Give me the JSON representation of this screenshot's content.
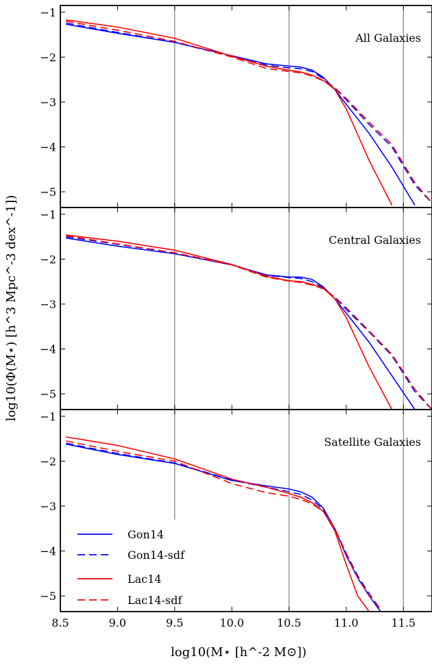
{
  "chart_data": {
    "type": "line",
    "ylabel": "log10(Φ(M⋆) [h^3 Mpc^-3 dex^-1])",
    "xlabel": "log10(M⋆ [h^-2 M⊙])",
    "xlim": [
      8.5,
      11.75
    ],
    "ylim": [
      -5.35,
      -0.85
    ],
    "xticks": [
      "8.5",
      "9.0",
      "9.5",
      "10.0",
      "10.5",
      "11.0",
      "11.5"
    ],
    "yticks": [
      "−1",
      "−2",
      "−3",
      "−4",
      "−5"
    ],
    "grid": false,
    "legend_location": "lower-left (bottom panel)",
    "vlines": [
      {
        "x": 9.5,
        "panels": [
          0,
          1,
          2
        ],
        "note": "ends at y≈-3.3 in bottom panel"
      },
      {
        "x": 10.5,
        "panels": [
          0,
          1,
          2
        ]
      },
      {
        "x": 11.5,
        "panels": [
          0,
          1,
          2
        ]
      }
    ],
    "colors": {
      "Gon14": "#0000ff",
      "Lac14": "#ff0000",
      "vline": "#808080"
    },
    "legend": [
      {
        "label": "Gon14",
        "color": "#0000ff",
        "dash": false
      },
      {
        "label": "Gon14-sdf",
        "color": "#0000ff",
        "dash": true
      },
      {
        "label": "Lac14",
        "color": "#ff0000",
        "dash": false
      },
      {
        "label": "Lac14-sdf",
        "color": "#ff0000",
        "dash": true
      }
    ],
    "panels": [
      {
        "title": "All Galaxies",
        "series": [
          {
            "name": "Gon14",
            "color": "#0000ff",
            "dash": false,
            "x": [
              8.55,
              9.0,
              9.5,
              10.0,
              10.3,
              10.5,
              10.6,
              10.7,
              10.8,
              10.9,
              11.0,
              11.2,
              11.4,
              11.6
            ],
            "y": [
              -1.27,
              -1.47,
              -1.67,
              -1.97,
              -2.15,
              -2.2,
              -2.22,
              -2.29,
              -2.45,
              -2.72,
              -3.05,
              -3.7,
              -4.45,
              -5.3
            ]
          },
          {
            "name": "Gon14-sdf",
            "color": "#0000ff",
            "dash": true,
            "x": [
              8.55,
              9.0,
              9.5,
              10.0,
              10.3,
              10.5,
              10.6,
              10.7,
              10.8,
              10.9,
              11.0,
              11.2,
              11.4,
              11.6,
              11.75
            ],
            "y": [
              -1.24,
              -1.45,
              -1.67,
              -1.99,
              -2.18,
              -2.24,
              -2.26,
              -2.32,
              -2.48,
              -2.69,
              -2.95,
              -3.5,
              -4.0,
              -4.85,
              -5.25
            ]
          },
          {
            "name": "Lac14",
            "color": "#ff0000",
            "dash": false,
            "x": [
              8.55,
              9.0,
              9.5,
              10.0,
              10.3,
              10.5,
              10.6,
              10.7,
              10.8,
              10.9,
              11.0,
              11.2,
              11.4
            ],
            "y": [
              -1.17,
              -1.33,
              -1.58,
              -1.98,
              -2.2,
              -2.29,
              -2.33,
              -2.4,
              -2.52,
              -2.72,
              -3.15,
              -4.3,
              -5.3
            ]
          },
          {
            "name": "Lac14-sdf",
            "color": "#ff0000",
            "dash": true,
            "x": [
              8.55,
              9.0,
              9.5,
              10.0,
              10.3,
              10.5,
              10.6,
              10.7,
              10.8,
              10.9,
              11.0,
              11.2,
              11.4,
              11.6,
              11.75
            ],
            "y": [
              -1.2,
              -1.4,
              -1.65,
              -2.0,
              -2.25,
              -2.32,
              -2.35,
              -2.42,
              -2.53,
              -2.68,
              -2.92,
              -3.45,
              -3.95,
              -4.8,
              -5.25
            ]
          }
        ]
      },
      {
        "title": "Central Galaxies",
        "series": [
          {
            "name": "Gon14",
            "color": "#0000ff",
            "dash": false,
            "x": [
              8.55,
              9.0,
              9.5,
              10.0,
              10.3,
              10.5,
              10.6,
              10.7,
              10.8,
              10.9,
              11.0,
              11.2,
              11.4,
              11.6
            ],
            "y": [
              -1.53,
              -1.71,
              -1.88,
              -2.13,
              -2.35,
              -2.4,
              -2.4,
              -2.45,
              -2.62,
              -2.88,
              -3.2,
              -3.85,
              -4.6,
              -5.35
            ]
          },
          {
            "name": "Gon14-sdf",
            "color": "#0000ff",
            "dash": true,
            "x": [
              8.55,
              9.0,
              9.5,
              10.0,
              10.3,
              10.5,
              10.6,
              10.7,
              10.8,
              10.9,
              11.0,
              11.2,
              11.4,
              11.6,
              11.75
            ],
            "y": [
              -1.5,
              -1.67,
              -1.86,
              -2.12,
              -2.36,
              -2.41,
              -2.43,
              -2.5,
              -2.64,
              -2.85,
              -3.12,
              -3.62,
              -4.15,
              -4.95,
              -5.35
            ]
          },
          {
            "name": "Lac14",
            "color": "#ff0000",
            "dash": false,
            "x": [
              8.55,
              9.0,
              9.5,
              10.0,
              10.3,
              10.5,
              10.6,
              10.7,
              10.8,
              10.9,
              11.0,
              11.2,
              11.4
            ],
            "y": [
              -1.46,
              -1.6,
              -1.8,
              -2.12,
              -2.38,
              -2.48,
              -2.5,
              -2.56,
              -2.65,
              -2.88,
              -3.3,
              -4.4,
              -5.35
            ]
          },
          {
            "name": "Lac14-sdf",
            "color": "#ff0000",
            "dash": true,
            "x": [
              8.55,
              9.0,
              9.5,
              10.0,
              10.3,
              10.5,
              10.6,
              10.7,
              10.8,
              10.9,
              11.0,
              11.2,
              11.4,
              11.6,
              11.75
            ],
            "y": [
              -1.48,
              -1.66,
              -1.86,
              -2.13,
              -2.4,
              -2.49,
              -2.52,
              -2.58,
              -2.66,
              -2.84,
              -3.08,
              -3.6,
              -4.12,
              -4.9,
              -5.35
            ]
          }
        ]
      },
      {
        "title": "Satellite Galaxies",
        "series": [
          {
            "name": "Gon14",
            "color": "#0000ff",
            "dash": false,
            "x": [
              8.55,
              9.0,
              9.5,
              10.0,
              10.3,
              10.5,
              10.6,
              10.7,
              10.8,
              10.9,
              11.0,
              11.1,
              11.2,
              11.3
            ],
            "y": [
              -1.62,
              -1.85,
              -2.05,
              -2.43,
              -2.55,
              -2.62,
              -2.68,
              -2.8,
              -3.05,
              -3.5,
              -4.1,
              -4.6,
              -5.0,
              -5.35
            ]
          },
          {
            "name": "Gon14-sdf",
            "color": "#0000ff",
            "dash": true,
            "x": [
              8.55,
              9.0,
              9.5,
              10.0,
              10.3,
              10.5,
              10.6,
              10.7,
              10.8,
              10.9,
              11.0,
              11.1,
              11.2,
              11.3
            ],
            "y": [
              -1.6,
              -1.83,
              -2.04,
              -2.42,
              -2.58,
              -2.68,
              -2.74,
              -2.86,
              -3.08,
              -3.5,
              -4.05,
              -4.55,
              -4.95,
              -5.3
            ]
          },
          {
            "name": "Lac14",
            "color": "#ff0000",
            "dash": false,
            "x": [
              8.55,
              9.0,
              9.5,
              10.0,
              10.3,
              10.5,
              10.6,
              10.7,
              10.8,
              10.9,
              11.0,
              11.1,
              11.2
            ],
            "y": [
              -1.46,
              -1.65,
              -1.95,
              -2.4,
              -2.58,
              -2.72,
              -2.8,
              -2.92,
              -3.12,
              -3.55,
              -4.3,
              -5.0,
              -5.35
            ]
          },
          {
            "name": "Lac14-sdf",
            "color": "#ff0000",
            "dash": true,
            "x": [
              8.55,
              9.0,
              9.5,
              10.0,
              10.3,
              10.5,
              10.6,
              10.7,
              10.8,
              10.9,
              11.0,
              11.1,
              11.2,
              11.3
            ],
            "y": [
              -1.55,
              -1.78,
              -2.0,
              -2.5,
              -2.7,
              -2.78,
              -2.85,
              -2.95,
              -3.12,
              -3.5,
              -4.05,
              -4.6,
              -5.0,
              -5.3
            ]
          }
        ]
      }
    ]
  }
}
